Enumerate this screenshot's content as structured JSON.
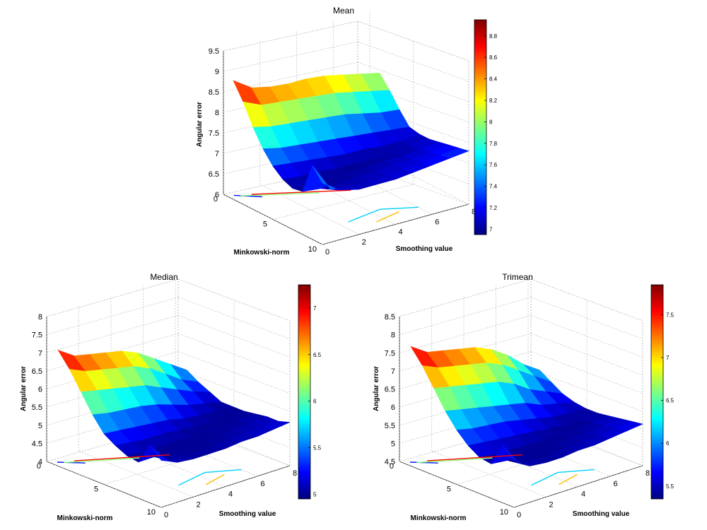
{
  "chart_data": [
    {
      "type": "surface",
      "title": "Mean",
      "zlabel": "Angular error",
      "xlabel": "Smoothing value",
      "ylabel": "Minkowski-norm",
      "zlim": [
        6,
        9.5
      ],
      "z_ticks": [
        "6",
        "6.5",
        "7",
        "7.5",
        "8",
        "8.5",
        "9",
        "9.5"
      ],
      "x_ticks": [
        "0",
        "2",
        "4",
        "6",
        "8"
      ],
      "y_ticks": [
        "0",
        "5",
        "10"
      ],
      "colorbar": {
        "range": [
          6.95,
          8.95
        ],
        "ticks": [
          "7",
          "7.2",
          "7.4",
          "7.6",
          "7.8",
          "8",
          "8.2",
          "8.4",
          "8.6",
          "8.8"
        ]
      },
      "grid": true,
      "surface_x": [
        0,
        1,
        2,
        3,
        4,
        5,
        6,
        7,
        8
      ],
      "surface_y": [
        1,
        2,
        3,
        4,
        5,
        6,
        7,
        8,
        9,
        10
      ],
      "surface_z": [
        [
          8.9,
          8.6,
          8.5,
          8.45,
          8.45,
          8.4,
          8.3,
          8.2,
          8.1
        ],
        [
          8.5,
          8.3,
          8.25,
          8.2,
          8.15,
          8.1,
          8.0,
          7.9,
          7.8
        ],
        [
          8.0,
          7.9,
          7.85,
          7.8,
          7.75,
          7.7,
          7.6,
          7.5,
          7.45
        ],
        [
          7.6,
          7.5,
          7.45,
          7.4,
          7.35,
          7.3,
          7.25,
          7.2,
          7.15
        ],
        [
          7.3,
          7.25,
          7.2,
          7.15,
          7.1,
          7.1,
          7.05,
          7.05,
          7.1
        ],
        [
          7.1,
          7.05,
          7.05,
          7.0,
          7.0,
          7.0,
          7.0,
          7.05,
          7.1
        ],
        [
          7.0,
          7.0,
          7.0,
          7.0,
          7.0,
          7.05,
          7.05,
          7.1,
          7.15
        ],
        [
          7.05,
          7.0,
          7.0,
          7.05,
          7.05,
          7.1,
          7.1,
          7.15,
          7.2
        ],
        [
          7.8,
          7.1,
          7.05,
          7.05,
          7.1,
          7.1,
          7.15,
          7.2,
          7.25
        ],
        [
          7.5,
          7.2,
          7.1,
          7.1,
          7.1,
          7.15,
          7.2,
          7.25,
          7.3
        ]
      ]
    },
    {
      "type": "surface",
      "title": "Median",
      "zlabel": "Angular error",
      "xlabel": "Smoothing value",
      "ylabel": "Minkowski-norm",
      "zlim": [
        4,
        8
      ],
      "z_ticks": [
        "4",
        "4.5",
        "5",
        "5.5",
        "6",
        "6.5",
        "7",
        "7.5",
        "8"
      ],
      "x_ticks": [
        "0",
        "2",
        "4",
        "6",
        "8"
      ],
      "y_ticks": [
        "0",
        "5",
        "10"
      ],
      "colorbar": {
        "range": [
          4.95,
          7.25
        ],
        "ticks": [
          "5",
          "5.5",
          "6",
          "6.5",
          "7"
        ]
      },
      "grid": true,
      "surface_x": [
        0,
        1,
        2,
        3,
        4,
        5,
        6,
        7,
        8
      ],
      "surface_y": [
        1,
        2,
        3,
        4,
        5,
        6,
        7,
        8,
        9,
        10
      ],
      "surface_z": [
        [
          7.2,
          6.9,
          6.8,
          6.7,
          6.6,
          6.4,
          6.1,
          5.8,
          5.5
        ],
        [
          6.8,
          6.6,
          6.5,
          6.4,
          6.3,
          6.1,
          5.8,
          5.5,
          5.3
        ],
        [
          6.3,
          6.2,
          6.1,
          6.0,
          5.9,
          5.7,
          5.5,
          5.3,
          5.15
        ],
        [
          5.8,
          5.7,
          5.65,
          5.6,
          5.5,
          5.35,
          5.2,
          5.1,
          5.0
        ],
        [
          5.4,
          5.35,
          5.3,
          5.25,
          5.2,
          5.1,
          5.05,
          5.0,
          5.0
        ],
        [
          5.2,
          5.15,
          5.1,
          5.1,
          5.05,
          5.0,
          5.0,
          5.0,
          5.0
        ],
        [
          5.05,
          5.0,
          5.0,
          5.0,
          5.0,
          5.0,
          5.0,
          5.0,
          5.05
        ],
        [
          5.0,
          5.0,
          5.0,
          5.0,
          5.0,
          5.0,
          5.05,
          5.05,
          5.1
        ],
        [
          5.6,
          5.05,
          5.0,
          5.0,
          5.0,
          5.05,
          5.05,
          5.1,
          5.1
        ],
        [
          5.3,
          5.1,
          5.05,
          5.05,
          5.05,
          5.1,
          5.1,
          5.15,
          5.2
        ]
      ]
    },
    {
      "type": "surface",
      "title": "Trimean",
      "zlabel": "Angular error",
      "xlabel": "Smoothing value",
      "ylabel": "Minkowski-norm",
      "zlim": [
        4.5,
        8.5
      ],
      "z_ticks": [
        "4.5",
        "5",
        "5.5",
        "6",
        "6.5",
        "7",
        "7.5",
        "8",
        "8.5"
      ],
      "x_ticks": [
        "0",
        "2",
        "4",
        "6",
        "8"
      ],
      "y_ticks": [
        "0",
        "5",
        "10"
      ],
      "colorbar": {
        "range": [
          5.35,
          7.85
        ],
        "ticks": [
          "5.5",
          "6",
          "6.5",
          "7",
          "7.5"
        ]
      },
      "grid": true,
      "surface_x": [
        0,
        1,
        2,
        3,
        4,
        5,
        6,
        7,
        8
      ],
      "surface_y": [
        1,
        2,
        3,
        4,
        5,
        6,
        7,
        8,
        9,
        10
      ],
      "surface_z": [
        [
          7.8,
          7.5,
          7.4,
          7.3,
          7.2,
          7.0,
          6.7,
          6.3,
          6.0
        ],
        [
          7.4,
          7.2,
          7.1,
          7.0,
          6.9,
          6.7,
          6.4,
          6.1,
          5.8
        ],
        [
          6.9,
          6.8,
          6.7,
          6.6,
          6.5,
          6.3,
          6.0,
          5.8,
          5.6
        ],
        [
          6.4,
          6.3,
          6.2,
          6.1,
          6.0,
          5.9,
          5.7,
          5.6,
          5.5
        ],
        [
          6.0,
          5.9,
          5.85,
          5.8,
          5.7,
          5.6,
          5.5,
          5.45,
          5.45
        ],
        [
          5.7,
          5.65,
          5.6,
          5.55,
          5.5,
          5.45,
          5.4,
          5.4,
          5.45
        ],
        [
          5.5,
          5.45,
          5.45,
          5.4,
          5.4,
          5.4,
          5.4,
          5.45,
          5.5
        ],
        [
          5.45,
          5.4,
          5.4,
          5.4,
          5.4,
          5.45,
          5.45,
          5.5,
          5.55
        ],
        [
          6.1,
          5.45,
          5.4,
          5.4,
          5.45,
          5.45,
          5.5,
          5.55,
          5.6
        ],
        [
          5.8,
          5.5,
          5.45,
          5.45,
          5.5,
          5.5,
          5.55,
          5.6,
          5.65
        ]
      ]
    }
  ]
}
